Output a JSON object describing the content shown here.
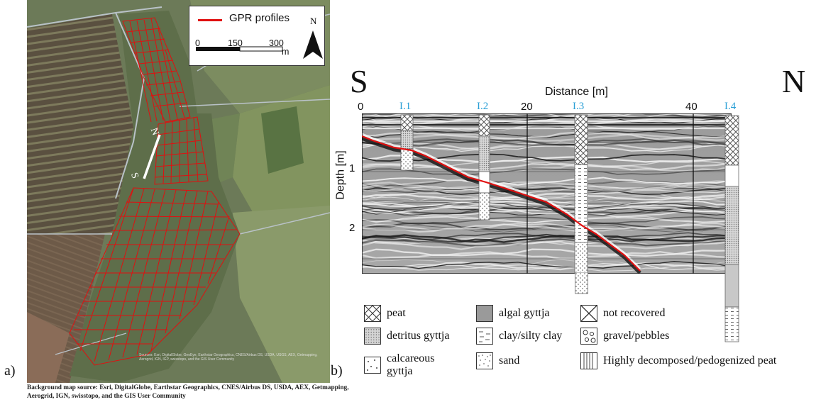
{
  "panel_a": {
    "label": "a)",
    "legend": {
      "line_label": "GPR profiles",
      "line_color": "#e01010",
      "north": "N",
      "scale_ticks": [
        "0",
        "150",
        "300"
      ],
      "scale_unit": "m"
    },
    "profile_markers": {
      "start": "S",
      "end": "N"
    },
    "map_attribution": "Sources: Esri, DigitalGlobe, GeoEye, Earthstar Geographics, CNES/Airbus DS, USDA, USGS, AEX, Getmapping, Aerogrid, IGN, IGP, swisstopo, and the GIS User Community",
    "caption": "Background map source: Esri, DigitalGlobe, Earthstar Geographics, CNES/Airbus DS, USDA, AEX, Getmapping, Aerogrid, IGN, swisstopo, and the GIS User Community"
  },
  "panel_b": {
    "label": "b)",
    "direction_left": "S",
    "direction_right": "N",
    "x_axis_title": "Distance [m]",
    "y_axis_title": "Depth [m]",
    "x_ticks": [
      "0",
      "20",
      "40"
    ],
    "y_ticks": [
      "1",
      "2"
    ],
    "core_labels": [
      "I.1",
      "I.2",
      "I.3",
      "I.4"
    ],
    "interface_color": "#e01010",
    "legend": [
      {
        "pattern": "crosshatch",
        "label": "peat"
      },
      {
        "pattern": "dense-dots",
        "label": "detritus gyttja"
      },
      {
        "pattern": "sparse-dots",
        "label": "calcareous gyttja"
      },
      {
        "pattern": "solid-gray",
        "label": "algal gyttja"
      },
      {
        "pattern": "dashes",
        "label": "clay/silty clay"
      },
      {
        "pattern": "sand-dots",
        "label": "sand"
      },
      {
        "pattern": "x-box",
        "label": "not recovered"
      },
      {
        "pattern": "circles",
        "label": "gravel/pebbles"
      },
      {
        "pattern": "vertical-lines",
        "label": "Highly decomposed/pedogenized peat"
      }
    ]
  }
}
